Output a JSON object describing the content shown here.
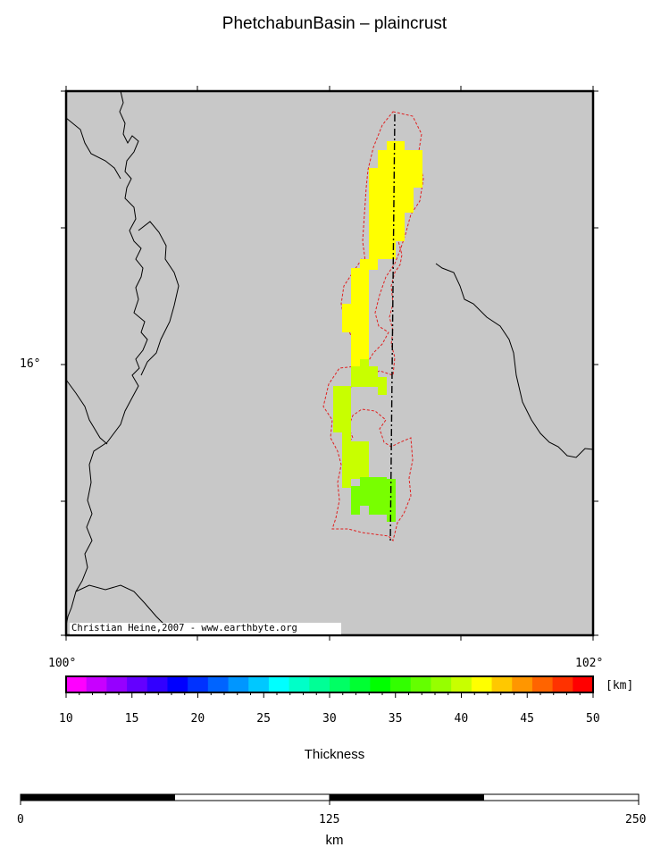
{
  "title": "PhetchabunBasin – plaincrust",
  "map": {
    "lat_label": "16°",
    "lon_labels": [
      "100°",
      "102°"
    ],
    "credit": "Christian Heine,2007 - www.earthbyte.org",
    "background_color": "#c8c8c8",
    "thickness_cells": [
      {
        "color": "#ffff00",
        "value": 45
      },
      {
        "color": "#c8ff00",
        "value": 41
      },
      {
        "color": "#78ff00",
        "value": 38
      }
    ]
  },
  "colorbar": {
    "unit": "[km]",
    "ticks": [
      "10",
      "15",
      "20",
      "25",
      "30",
      "35",
      "40",
      "45",
      "50"
    ],
    "min": 10,
    "max": 50,
    "label": "Thickness",
    "colors": [
      "#ff00ff",
      "#c800ff",
      "#9600ff",
      "#6400ff",
      "#3200ff",
      "#0000ff",
      "#0032ff",
      "#0064ff",
      "#0096ff",
      "#00c8ff",
      "#00ffff",
      "#00ffc8",
      "#00ff96",
      "#00ff64",
      "#00ff32",
      "#00ff00",
      "#32ff00",
      "#64ff00",
      "#96ff00",
      "#c8ff00",
      "#ffff00",
      "#ffc800",
      "#ff9600",
      "#ff6400",
      "#ff3200",
      "#ff0000"
    ]
  },
  "scalebar": {
    "ticks": [
      "0",
      "125",
      "250"
    ],
    "unit": "km"
  }
}
